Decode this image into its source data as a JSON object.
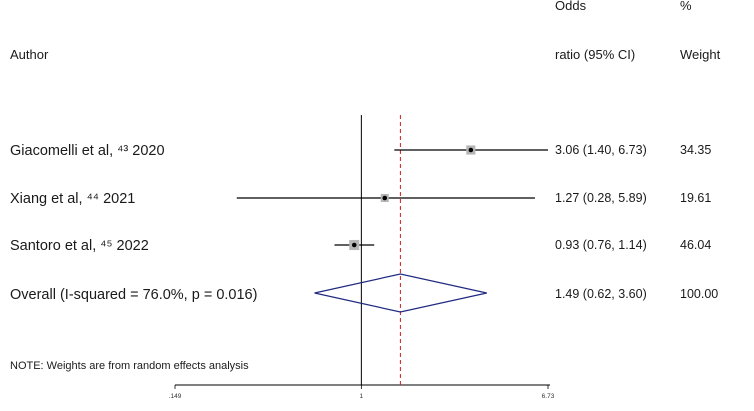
{
  "chart_data": {
    "type": "forest",
    "headers": {
      "author": "Author",
      "or_line1": "Odds",
      "or_line2": "ratio (95% CI)",
      "weight_line1": "%",
      "weight_line2": "Weight"
    },
    "studies": [
      {
        "label": "Giacomelli et al, ⁴³ 2020",
        "or": 3.06,
        "lo": 1.4,
        "hi": 6.73,
        "ci_text": "3.06 (1.40, 6.73)",
        "weight": 34.35,
        "weight_text": "34.35"
      },
      {
        "label": "Xiang et al, ⁴⁴ 2021",
        "or": 1.27,
        "lo": 0.28,
        "hi": 5.89,
        "ci_text": "1.27 (0.28, 5.89)",
        "weight": 19.61,
        "weight_text": "19.61"
      },
      {
        "label": "Santoro et al, ⁴⁵ 2022",
        "or": 0.93,
        "lo": 0.76,
        "hi": 1.14,
        "ci_text": "0.93 (0.76, 1.14)",
        "weight": 46.04,
        "weight_text": "46.04"
      }
    ],
    "overall": {
      "label": "Overall  (I-squared = 76.0%, p = 0.016)",
      "or": 1.49,
      "lo": 0.62,
      "hi": 3.6,
      "ci_text": "1.49 (0.62, 3.60)",
      "weight_text": "100.00"
    },
    "note": "NOTE: Weights are from random effects analysis",
    "x_scale": "log",
    "x_ticks": [
      {
        "value": 0.149,
        "label": ".149"
      },
      {
        "value": 1,
        "label": "1"
      },
      {
        "value": 6.73,
        "label": "6.73"
      }
    ],
    "null_value": 1,
    "colors": {
      "ci_line": "#000000",
      "weight_box": "#b5b5b5",
      "point": "#000000",
      "diamond": "#1f2a80",
      "overall_line": "#cc1f1f",
      "null_line": "#000000"
    }
  }
}
